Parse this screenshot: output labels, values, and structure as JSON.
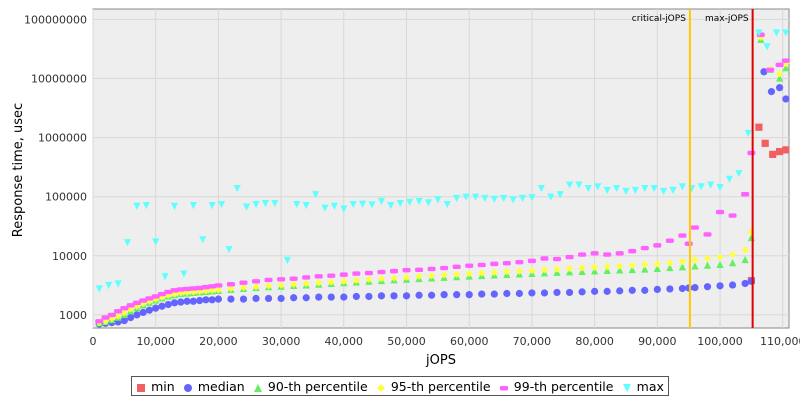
{
  "chart_data": {
    "type": "scatter",
    "xlabel": "jOPS",
    "ylabel": "Response time, usec",
    "xlim": [
      0,
      111000
    ],
    "ylim": [
      600,
      150000000
    ],
    "y_scale": "log",
    "grid": true,
    "legend_position": "bottom",
    "x_ticks": [
      "0",
      "10,000",
      "20,000",
      "30,000",
      "40,000",
      "50,000",
      "60,000",
      "70,000",
      "80,000",
      "90,000",
      "100,000",
      "110,000"
    ],
    "x_tick_values": [
      0,
      10000,
      20000,
      30000,
      40000,
      50000,
      60000,
      70000,
      80000,
      90000,
      100000,
      110000
    ],
    "y_ticks": [
      "1000",
      "10000",
      "100000",
      "1000000",
      "10000000",
      "100000000"
    ],
    "y_tick_values": [
      1000,
      10000,
      100000,
      1000000,
      10000000,
      100000000
    ],
    "annotations": [
      {
        "label": "critical-jOPS",
        "x": 95200,
        "color": "#ffc800"
      },
      {
        "label": "max-jOPS",
        "x": 105200,
        "color": "#e00000"
      }
    ],
    "series": [
      {
        "name": "min",
        "color": "#f06060",
        "marker": "square",
        "x": [
          105000,
          106200,
          107200,
          108400,
          109500,
          110500
        ],
        "y": [
          3800,
          1500000,
          800000,
          520000,
          580000,
          620000
        ]
      },
      {
        "name": "median",
        "color": "#6464ff",
        "marker": "circle",
        "x": [
          1000,
          2000,
          3000,
          4000,
          5000,
          6000,
          7000,
          8000,
          9000,
          10000,
          11000,
          12000,
          13000,
          14000,
          15000,
          16000,
          17000,
          18000,
          19000,
          20000,
          22000,
          24000,
          26000,
          28000,
          30000,
          32000,
          34000,
          36000,
          38000,
          40000,
          42000,
          44000,
          46000,
          48000,
          50000,
          52000,
          54000,
          56000,
          58000,
          60000,
          62000,
          64000,
          66000,
          68000,
          70000,
          72000,
          74000,
          76000,
          78000,
          80000,
          82000,
          84000,
          86000,
          88000,
          90000,
          92000,
          94000,
          95000,
          96000,
          98000,
          100000,
          102000,
          104000,
          105000,
          107000,
          108200,
          109500,
          110500
        ],
        "y": [
          700,
          720,
          740,
          760,
          800,
          900,
          1000,
          1100,
          1200,
          1300,
          1400,
          1500,
          1600,
          1650,
          1700,
          1700,
          1750,
          1800,
          1800,
          1850,
          1850,
          1850,
          1900,
          1900,
          1900,
          1950,
          1950,
          2000,
          2000,
          2000,
          2050,
          2050,
          2100,
          2100,
          2100,
          2150,
          2150,
          2200,
          2200,
          2200,
          2250,
          2250,
          2300,
          2300,
          2350,
          2350,
          2400,
          2400,
          2450,
          2500,
          2500,
          2550,
          2600,
          2600,
          2700,
          2750,
          2800,
          2850,
          2900,
          3000,
          3100,
          3200,
          3400,
          3700,
          13000000,
          6000000,
          7000000,
          4500000
        ]
      },
      {
        "name": "90-th percentile",
        "color": "#60f060",
        "marker": "triangle-up",
        "x": [
          1000,
          2000,
          3000,
          4000,
          5000,
          6000,
          7000,
          8000,
          9000,
          10000,
          11000,
          12000,
          13000,
          14000,
          15000,
          16000,
          17000,
          18000,
          19000,
          20000,
          22000,
          24000,
          26000,
          28000,
          30000,
          32000,
          34000,
          36000,
          38000,
          40000,
          42000,
          44000,
          46000,
          48000,
          50000,
          52000,
          54000,
          56000,
          58000,
          60000,
          62000,
          64000,
          66000,
          68000,
          70000,
          72000,
          74000,
          76000,
          78000,
          80000,
          82000,
          84000,
          86000,
          88000,
          90000,
          92000,
          94000,
          96000,
          98000,
          100000,
          102000,
          104000,
          105000,
          106500,
          108000,
          109500,
          110500
        ],
        "y": [
          720,
          760,
          820,
          900,
          1000,
          1150,
          1300,
          1450,
          1600,
          1750,
          1900,
          2050,
          2150,
          2250,
          2300,
          2350,
          2400,
          2450,
          2500,
          2550,
          2650,
          2750,
          2850,
          2950,
          3000,
          3100,
          3150,
          3250,
          3350,
          3450,
          3550,
          3650,
          3750,
          3850,
          3950,
          4050,
          4150,
          4250,
          4350,
          4450,
          4550,
          4650,
          4750,
          4850,
          4950,
          5050,
          5150,
          5250,
          5350,
          5450,
          5550,
          5650,
          5750,
          5850,
          6000,
          6200,
          6400,
          6600,
          6800,
          7000,
          7500,
          8500,
          20000,
          45000000,
          14000000,
          10000000,
          15000000
        ]
      },
      {
        "name": "95-th percentile",
        "color": "#ffff40",
        "marker": "diamond",
        "x": [
          1000,
          2000,
          3000,
          4000,
          5000,
          6000,
          7000,
          8000,
          9000,
          10000,
          11000,
          12000,
          13000,
          14000,
          15000,
          16000,
          17000,
          18000,
          19000,
          20000,
          22000,
          24000,
          26000,
          28000,
          30000,
          32000,
          34000,
          36000,
          38000,
          40000,
          42000,
          44000,
          46000,
          48000,
          50000,
          52000,
          54000,
          56000,
          58000,
          60000,
          62000,
          64000,
          66000,
          68000,
          70000,
          72000,
          74000,
          76000,
          78000,
          80000,
          82000,
          84000,
          86000,
          88000,
          90000,
          92000,
          94000,
          96000,
          98000,
          100000,
          102000,
          104000,
          105000,
          106500,
          108000,
          109500,
          110500
        ],
        "y": [
          740,
          780,
          860,
          950,
          1080,
          1250,
          1400,
          1550,
          1700,
          1850,
          2000,
          2150,
          2250,
          2350,
          2400,
          2450,
          2500,
          2550,
          2600,
          2650,
          2800,
          2900,
          3000,
          3100,
          3200,
          3300,
          3400,
          3500,
          3600,
          3700,
          3850,
          4000,
          4100,
          4200,
          4350,
          4500,
          4600,
          4750,
          4850,
          5000,
          5100,
          5250,
          5400,
          5500,
          5650,
          5800,
          5950,
          6100,
          6250,
          6400,
          6550,
          6700,
          6900,
          7100,
          7300,
          7600,
          8000,
          8500,
          9000,
          9500,
          10500,
          12500,
          25000,
          50000000,
          14500000,
          12000000,
          18000000
        ]
      },
      {
        "name": "99-th percentile",
        "color": "#ff60ff",
        "marker": "rect",
        "x": [
          1000,
          2000,
          3000,
          4000,
          5000,
          6000,
          7000,
          8000,
          9000,
          10000,
          11000,
          12000,
          13000,
          14000,
          15000,
          16000,
          17000,
          18000,
          19000,
          20000,
          22000,
          24000,
          26000,
          28000,
          30000,
          32000,
          34000,
          36000,
          38000,
          40000,
          42000,
          44000,
          46000,
          48000,
          50000,
          52000,
          54000,
          56000,
          58000,
          60000,
          62000,
          64000,
          66000,
          68000,
          70000,
          72000,
          74000,
          76000,
          78000,
          80000,
          82000,
          84000,
          86000,
          88000,
          90000,
          92000,
          94000,
          95000,
          96000,
          98000,
          100000,
          102000,
          104000,
          105000,
          106500,
          108000,
          109500,
          110500
        ],
        "y": [
          780,
          900,
          1000,
          1150,
          1300,
          1450,
          1600,
          1750,
          1900,
          2050,
          2250,
          2450,
          2600,
          2700,
          2750,
          2800,
          2850,
          2950,
          3050,
          3150,
          3300,
          3500,
          3700,
          3900,
          4000,
          4100,
          4300,
          4500,
          4600,
          4800,
          5000,
          5100,
          5300,
          5500,
          5700,
          5800,
          6000,
          6200,
          6500,
          6800,
          7000,
          7300,
          7500,
          7800,
          8200,
          9000,
          8800,
          9500,
          10500,
          11000,
          10500,
          11000,
          12000,
          13500,
          15000,
          18000,
          22000,
          16000,
          30000,
          23000,
          55000,
          48000,
          110000,
          550000,
          55000000,
          14000000,
          17000000,
          20000000
        ]
      },
      {
        "name": "max",
        "color": "#60ffff",
        "marker": "triangle-down",
        "x": [
          1000,
          2500,
          4000,
          5500,
          7000,
          8500,
          10000,
          11500,
          13000,
          14500,
          16000,
          17500,
          19000,
          20500,
          21700,
          23000,
          24500,
          26000,
          27500,
          29000,
          31000,
          32500,
          34000,
          35500,
          37000,
          38500,
          40000,
          41500,
          43000,
          44500,
          46000,
          47500,
          49000,
          50500,
          52000,
          53500,
          55000,
          56500,
          58000,
          59500,
          61000,
          62500,
          64000,
          65500,
          67000,
          68500,
          70000,
          71500,
          73000,
          74500,
          76000,
          77500,
          79000,
          80500,
          82000,
          83500,
          85000,
          86500,
          88000,
          89500,
          91000,
          92500,
          94000,
          95500,
          97000,
          98500,
          100000,
          101500,
          103000,
          104500,
          106200,
          107500,
          109000,
          110500
        ],
        "y": [
          2800,
          3200,
          3400,
          17000,
          70000,
          72000,
          17500,
          4500,
          70000,
          5000,
          72000,
          19000,
          72000,
          75000,
          13000,
          140000,
          68000,
          75000,
          78000,
          78000,
          8500,
          75000,
          72000,
          110000,
          65000,
          70000,
          63000,
          75000,
          76000,
          74000,
          85000,
          72000,
          78000,
          82000,
          85000,
          80000,
          90000,
          75000,
          95000,
          100000,
          100000,
          95000,
          92000,
          95000,
          90000,
          95000,
          98000,
          140000,
          100000,
          110000,
          160000,
          160000,
          140000,
          150000,
          130000,
          140000,
          125000,
          130000,
          140000,
          140000,
          125000,
          130000,
          150000,
          140000,
          150000,
          160000,
          145000,
          200000,
          250000,
          1200000,
          60000000,
          35000000,
          60000000,
          60000000
        ]
      }
    ]
  }
}
